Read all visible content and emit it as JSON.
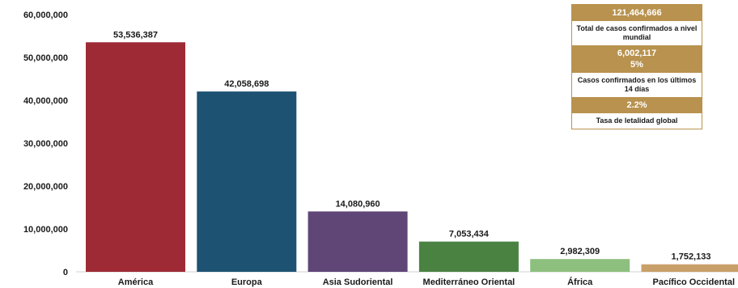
{
  "chart_data": {
    "type": "bar",
    "categories": [
      "América",
      "Europa",
      "Asia Sudoriental",
      "Mediterráneo Oriental",
      "África",
      "Pacífico Occidental"
    ],
    "values": [
      53536387,
      42058698,
      14080960,
      7053434,
      2982309,
      1752133
    ],
    "value_labels": [
      "53,536,387",
      "42,058,698",
      "14,080,960",
      "7,053,434",
      "2,982,309",
      "1,752,133"
    ],
    "colors": [
      "#9e2a36",
      "#1e5272",
      "#5f4677",
      "#4a8242",
      "#8dbf7e",
      "#c9a06a"
    ],
    "ylim": [
      0,
      60000000
    ],
    "yticks": [
      0,
      10000000,
      20000000,
      30000000,
      40000000,
      50000000,
      60000000
    ],
    "ytick_labels": [
      "0",
      "10,000,000",
      "20,000,000",
      "30,000,000",
      "40,000,000",
      "50,000,000",
      "60,000,000"
    ],
    "grid": false,
    "title": "",
    "xlabel": "",
    "ylabel": ""
  },
  "stats": {
    "total_cases_value": "121,464,666",
    "total_cases_label": "Total de casos confirmados a nivel mundial",
    "recent_cases_value": "6,002,117",
    "recent_cases_pct": "5%",
    "recent_cases_label": "Casos confirmados en los últimos 14 días",
    "lethality_value": "2.2%",
    "lethality_label": "Tasa de letalidad global"
  },
  "colors": {
    "panel_gold": "#b8924e"
  }
}
